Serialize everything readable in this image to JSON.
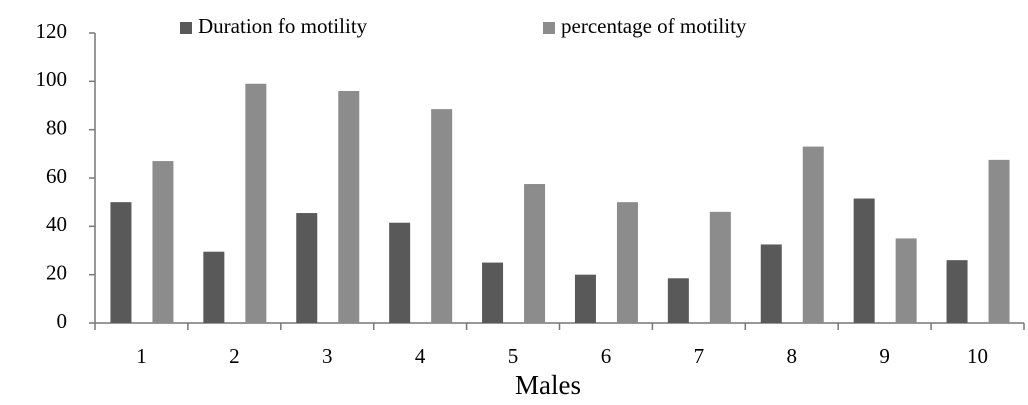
{
  "chart_data": {
    "type": "bar",
    "x_label": "Males",
    "categories": [
      "1",
      "2",
      "3",
      "4",
      "5",
      "6",
      "7",
      "8",
      "9",
      "10"
    ],
    "series": [
      {
        "name": "Duration fo motility",
        "color": "#595959",
        "values": [
          50,
          29.5,
          45.5,
          41.5,
          25,
          20,
          18.5,
          32.5,
          51.5,
          26
        ]
      },
      {
        "name": "percentage of motility",
        "color": "#8c8c8c",
        "values": [
          67,
          99,
          96,
          88.5,
          57.5,
          50,
          46,
          73,
          35,
          67.5
        ]
      }
    ],
    "ylim": [
      0,
      120
    ],
    "yticks": [
      0,
      20,
      40,
      60,
      80,
      100,
      120
    ],
    "grid": false,
    "legend": "top"
  }
}
